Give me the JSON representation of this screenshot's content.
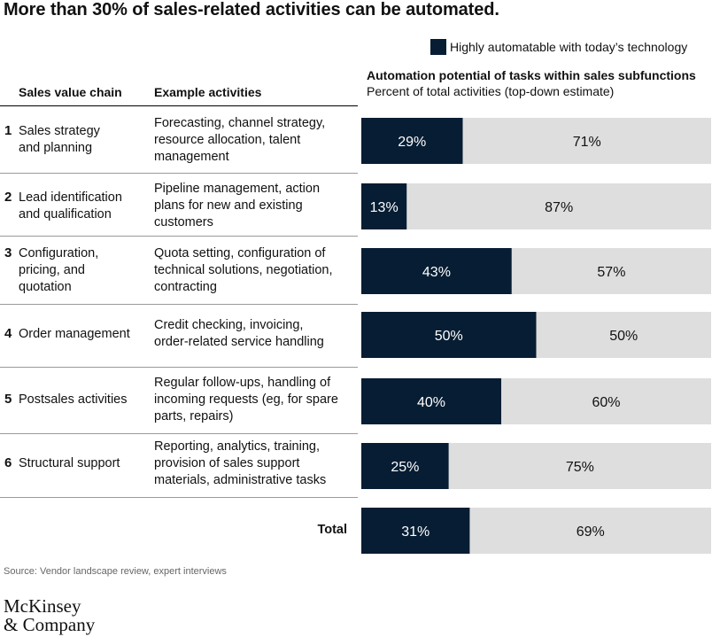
{
  "title": "More than 30% of sales-related activities can be automated.",
  "legend": {
    "label": "Highly automatable with today’s technology"
  },
  "headers": {
    "chain": "Sales value chain",
    "activities": "Example activities",
    "chart_title": "Automation potential of tasks within sales subfunctions",
    "chart_subtitle": "Percent of total activities (top-down estimate)"
  },
  "rows": [
    {
      "num": "1",
      "chain": [
        "Sales strategy",
        "and planning"
      ],
      "activities": [
        "Forecasting, channel strategy,",
        "resource allocation, talent",
        "management"
      ]
    },
    {
      "num": "2",
      "chain": [
        "Lead identification",
        "and qualification"
      ],
      "activities": [
        "Pipeline management, action",
        "plans for new and existing",
        "customers"
      ]
    },
    {
      "num": "3",
      "chain": [
        "Configuration,",
        "pricing, and",
        "quotation"
      ],
      "activities": [
        "Quota setting, configuration of",
        "technical solutions, negotiation,",
        "contracting"
      ]
    },
    {
      "num": "4",
      "chain": [
        "Order management"
      ],
      "activities": [
        "Credit checking, invoicing,",
        "order-related service handling"
      ]
    },
    {
      "num": "5",
      "chain": [
        "Postsales activities"
      ],
      "activities": [
        "Regular follow-ups, handling of",
        "incoming requests (eg, for spare",
        "parts, repairs)"
      ]
    },
    {
      "num": "6",
      "chain": [
        "Structural support"
      ],
      "activities": [
        "Reporting, analytics, training,",
        "provision of sales support",
        "materials, administrative tasks"
      ]
    }
  ],
  "total_label": "Total",
  "chart_data": {
    "type": "bar",
    "orientation": "horizontal",
    "stacked": true,
    "categories": [
      "Sales strategy and planning",
      "Lead identification and qualification",
      "Configuration, pricing, and quotation",
      "Order management",
      "Postsales activities",
      "Structural support",
      "Total"
    ],
    "series": [
      {
        "name": "Highly automatable with today’s technology",
        "values": [
          29,
          13,
          43,
          50,
          40,
          25,
          31
        ],
        "color": "#071d33"
      },
      {
        "values": [
          71,
          87,
          57,
          50,
          60,
          75,
          69
        ],
        "color": "#dedede"
      }
    ],
    "value_labels": [
      [
        "29%",
        "71%"
      ],
      [
        "13%",
        "87%"
      ],
      [
        "43%",
        "57%"
      ],
      [
        "50%",
        "50%"
      ],
      [
        "40%",
        "60%"
      ],
      [
        "25%",
        "75%"
      ],
      [
        "31%",
        "69%"
      ]
    ],
    "xlim": [
      0,
      100
    ],
    "unit": "%"
  },
  "source": "Source: Vendor landscape review, expert interviews",
  "logo": [
    "McKinsey",
    "& Company"
  ]
}
